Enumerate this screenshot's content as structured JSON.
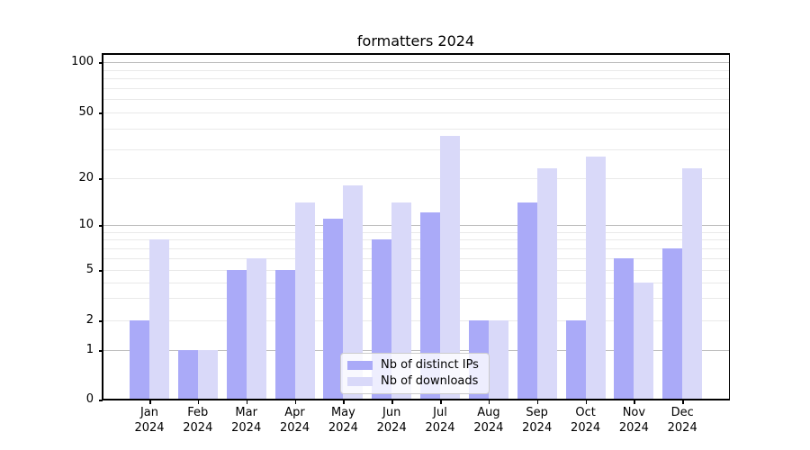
{
  "chart_data": {
    "type": "bar",
    "title": "formatters 2024",
    "categories": [
      "Jan 2024",
      "Feb 2024",
      "Mar 2024",
      "Apr 2024",
      "May 2024",
      "Jun 2024",
      "Jul 2024",
      "Aug 2024",
      "Sep 2024",
      "Oct 2024",
      "Nov 2024",
      "Dec 2024"
    ],
    "x_tick_line1": [
      "Jan",
      "Feb",
      "Mar",
      "Apr",
      "May",
      "Jun",
      "Jul",
      "Aug",
      "Sep",
      "Oct",
      "Nov",
      "Dec"
    ],
    "x_tick_line2": "2024",
    "series": [
      {
        "name": "Nb of distinct IPs",
        "color": "#aaaaf8",
        "values": [
          2,
          1,
          5,
          5,
          11,
          8,
          12,
          2,
          14,
          2,
          6,
          7
        ]
      },
      {
        "name": "Nb of downloads",
        "color": "#d9d9f9",
        "values": [
          8,
          1,
          6,
          14,
          18,
          14,
          36,
          2,
          23,
          27,
          4,
          23
        ]
      }
    ],
    "xlabel": "",
    "ylabel": "",
    "yscale": "log-like (symlog: 0 shown at bottom)",
    "ylim": [
      0,
      112
    ],
    "y_tick_labels": [
      "100",
      "50",
      "20",
      "10",
      "5",
      "2",
      "1",
      "0"
    ],
    "y_tick_values": [
      100,
      50,
      20,
      10,
      5,
      2,
      1,
      0
    ],
    "grid": true,
    "grid_major_values": [
      1,
      10,
      100
    ],
    "grid_minor_values": [
      2,
      3,
      4,
      5,
      6,
      7,
      8,
      9,
      20,
      30,
      40,
      50,
      60,
      70,
      80,
      90
    ],
    "legend_position": "lower center",
    "colors": {
      "major_grid": "#bcbcbc",
      "minor_grid": "#e9e9e9",
      "spine": "#000000",
      "text": "#000000",
      "legend_border": "#cccccc",
      "background": "#ffffff"
    }
  }
}
